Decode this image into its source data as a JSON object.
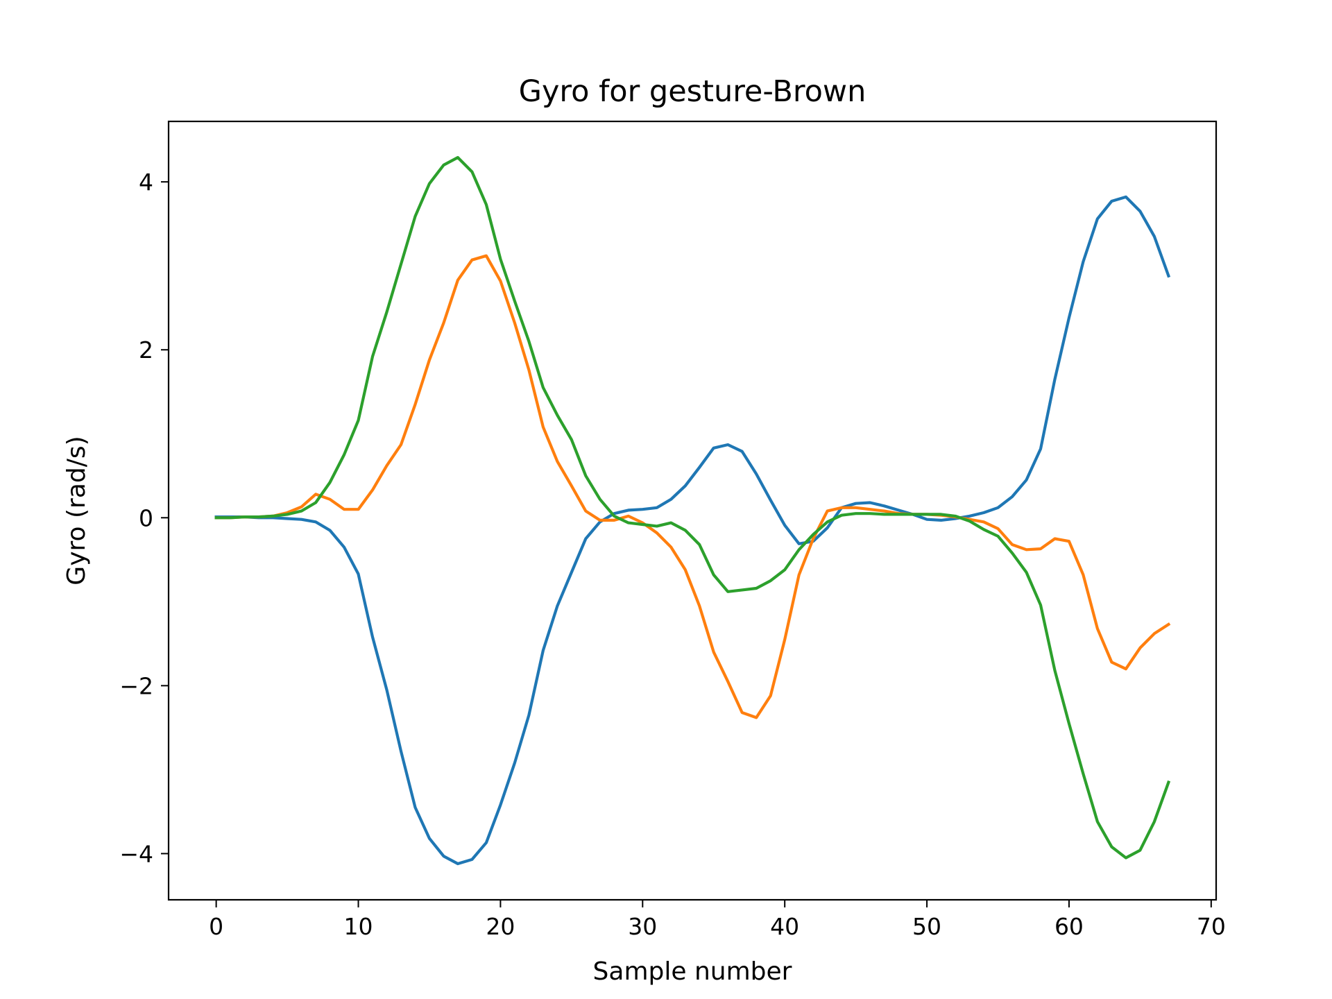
{
  "chart_data": {
    "type": "line",
    "title": "Gyro for gesture-Brown",
    "xlabel": "Sample number",
    "ylabel": "Gyro  (rad/s)",
    "xlim": [
      -3.35,
      70.35
    ],
    "ylim": [
      -4.55,
      4.72
    ],
    "xticks": [
      0,
      10,
      20,
      30,
      40,
      50,
      60,
      70
    ],
    "yticks": [
      -4,
      -2,
      0,
      2,
      4
    ],
    "ytick_labels": [
      "−4",
      "−2",
      "0",
      "2",
      "4"
    ],
    "grid": false,
    "legend": "none",
    "x": [
      0,
      1,
      2,
      3,
      4,
      5,
      6,
      7,
      8,
      9,
      10,
      11,
      12,
      13,
      14,
      15,
      16,
      17,
      18,
      19,
      20,
      21,
      22,
      23,
      24,
      25,
      26,
      27,
      28,
      29,
      30,
      31,
      32,
      33,
      34,
      35,
      36,
      37,
      38,
      39,
      40,
      41,
      42,
      43,
      44,
      45,
      46,
      47,
      48,
      49,
      50,
      51,
      52,
      53,
      54,
      55,
      56,
      57,
      58,
      59,
      60,
      61,
      62,
      63,
      64,
      65,
      66,
      67
    ],
    "series": [
      {
        "color": "#1f77b4",
        "values": [
          0.01,
          0.01,
          0.01,
          0.0,
          0.0,
          -0.01,
          -0.02,
          -0.05,
          -0.15,
          -0.35,
          -0.67,
          -1.42,
          -2.05,
          -2.78,
          -3.45,
          -3.82,
          -4.03,
          -4.12,
          -4.07,
          -3.87,
          -3.42,
          -2.92,
          -2.35,
          -1.58,
          -1.05,
          -0.65,
          -0.25,
          -0.05,
          0.05,
          0.09,
          0.1,
          0.12,
          0.22,
          0.38,
          0.6,
          0.83,
          0.87,
          0.79,
          0.52,
          0.21,
          -0.09,
          -0.31,
          -0.28,
          -0.12,
          0.12,
          0.17,
          0.18,
          0.14,
          0.09,
          0.04,
          -0.02,
          -0.03,
          -0.01,
          0.02,
          0.06,
          0.12,
          0.25,
          0.45,
          0.82,
          1.65,
          2.38,
          3.05,
          3.56,
          3.77,
          3.82,
          3.65,
          3.35,
          2.88
        ]
      },
      {
        "color": "#ff7f0e",
        "values": [
          0.0,
          0.0,
          0.01,
          0.01,
          0.02,
          0.06,
          0.13,
          0.28,
          0.22,
          0.1,
          0.1,
          0.33,
          0.62,
          0.87,
          1.35,
          1.88,
          2.32,
          2.83,
          3.07,
          3.12,
          2.82,
          2.32,
          1.76,
          1.08,
          0.67,
          0.38,
          0.08,
          -0.03,
          -0.03,
          0.02,
          -0.06,
          -0.18,
          -0.35,
          -0.62,
          -1.05,
          -1.6,
          -1.95,
          -2.32,
          -2.38,
          -2.12,
          -1.45,
          -0.68,
          -0.25,
          0.08,
          0.12,
          0.12,
          0.1,
          0.08,
          0.05,
          0.04,
          0.04,
          0.03,
          0.01,
          -0.02,
          -0.05,
          -0.13,
          -0.32,
          -0.38,
          -0.37,
          -0.25,
          -0.28,
          -0.68,
          -1.32,
          -1.72,
          -1.8,
          -1.55,
          -1.38,
          -1.27
        ]
      },
      {
        "color": "#2ca02c",
        "values": [
          0.0,
          0.0,
          0.01,
          0.01,
          0.02,
          0.04,
          0.08,
          0.18,
          0.42,
          0.75,
          1.16,
          1.92,
          2.45,
          3.02,
          3.59,
          3.98,
          4.2,
          4.29,
          4.12,
          3.73,
          3.08,
          2.58,
          2.1,
          1.55,
          1.22,
          0.93,
          0.5,
          0.22,
          0.02,
          -0.06,
          -0.08,
          -0.1,
          -0.06,
          -0.15,
          -0.32,
          -0.68,
          -0.88,
          -0.86,
          -0.84,
          -0.75,
          -0.62,
          -0.38,
          -0.2,
          -0.05,
          0.03,
          0.05,
          0.05,
          0.04,
          0.04,
          0.04,
          0.04,
          0.04,
          0.02,
          -0.04,
          -0.14,
          -0.22,
          -0.42,
          -0.65,
          -1.04,
          -1.82,
          -2.45,
          -3.05,
          -3.62,
          -3.92,
          -4.05,
          -3.96,
          -3.62,
          -3.15
        ]
      }
    ]
  }
}
